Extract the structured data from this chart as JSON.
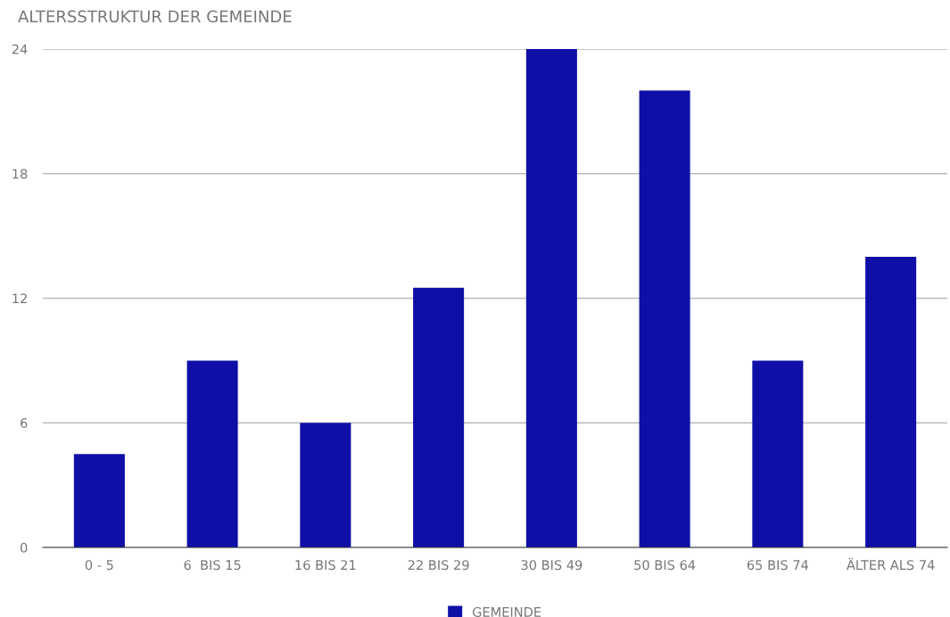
{
  "chart_data": {
    "type": "bar",
    "title": "ALTERSSTRUKTUR DER GEMEINDE",
    "categories": [
      "0 - 5",
      "6  BIS 15",
      "16 BIS 21",
      "22 BIS 29",
      "30 BIS 49",
      "50 BIS 64",
      "65 BIS 74",
      "ÄLTER ALS 74"
    ],
    "series": [
      {
        "name": "GEMEINDE",
        "color": "#0f0fa8",
        "values": [
          4.5,
          9,
          6,
          12.5,
          24,
          22,
          9,
          14
        ]
      }
    ],
    "ylim": [
      0,
      24
    ],
    "yticks": [
      0,
      6,
      12,
      18,
      24
    ],
    "grid": "y",
    "legend": "bottom"
  }
}
